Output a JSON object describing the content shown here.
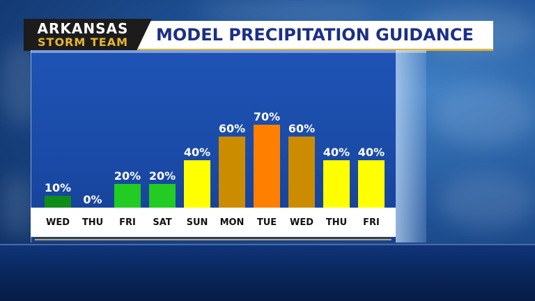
{
  "header": {
    "logo_line1": "ARKANSAS",
    "logo_line2": "STORM TEAM",
    "title": "MODEL PRECIPITATION GUIDANCE"
  },
  "chart_data": {
    "type": "bar",
    "categories": [
      "WED",
      "THU",
      "FRI",
      "SAT",
      "SUN",
      "MON",
      "TUE",
      "WED",
      "THU",
      "FRI"
    ],
    "values": [
      10,
      0,
      20,
      20,
      40,
      60,
      70,
      60,
      40,
      40
    ],
    "value_labels": [
      "10%",
      "0%",
      "20%",
      "20%",
      "40%",
      "60%",
      "70%",
      "60%",
      "40%",
      "40%"
    ],
    "colors": [
      "#0f8c1a",
      "#0f8c1a",
      "#22cc22",
      "#22cc22",
      "#ffff00",
      "#cc8c00",
      "#ff8000",
      "#cc8c00",
      "#ffff00",
      "#ffff00"
    ],
    "ylim": [
      0,
      100
    ],
    "unit": "%",
    "grid": false
  }
}
